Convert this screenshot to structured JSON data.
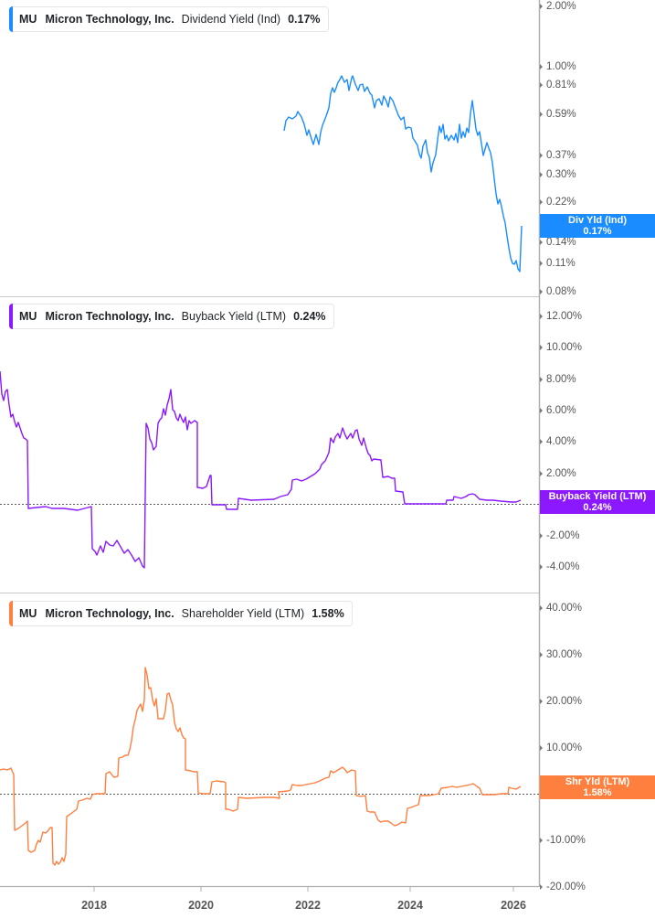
{
  "colors": {
    "dividend": "#1a8cff",
    "buyback": "#8b18ff",
    "shareholder": "#ff7f3f",
    "axis": "#b0b0b0",
    "zero_line": "#555555"
  },
  "panels": [
    {
      "legend": {
        "ticker": "MU",
        "company": "Micron Technology, Inc.",
        "metric": "Dividend Yield (Ind)",
        "value": "0.17%"
      },
      "tag": {
        "label": "Div Yld (Ind)",
        "value": "0.17%"
      },
      "yticks": [
        "2.00%",
        "1.00%",
        "0.81%",
        "0.59%",
        "0.37%",
        "0.30%",
        "0.22%",
        "0.14%",
        "0.11%",
        "0.08%"
      ]
    },
    {
      "legend": {
        "ticker": "MU",
        "company": "Micron Technology, Inc.",
        "metric": "Buyback Yield (LTM)",
        "value": "0.24%"
      },
      "tag": {
        "label": "Buyback Yield (LTM)",
        "value": "0.24%"
      },
      "yticks": [
        "12.00%",
        "10.00%",
        "8.00%",
        "6.00%",
        "4.00%",
        "2.00%",
        "0.00%",
        "-2.00%",
        "-4.00%"
      ]
    },
    {
      "legend": {
        "ticker": "MU",
        "company": "Micron Technology, Inc.",
        "metric": "Shareholder Yield (LTM)",
        "value": "1.58%"
      },
      "tag": {
        "label": "Shr Yld (LTM)",
        "value": "1.58%"
      },
      "yticks": [
        "40.00%",
        "30.00%",
        "20.00%",
        "10.00%",
        "0.00%",
        "-10.00%",
        "-20.00%"
      ]
    }
  ],
  "xaxis": {
    "ticks": [
      "2018",
      "2020",
      "2022",
      "2024",
      "2026"
    ]
  },
  "chart_data": [
    {
      "type": "line",
      "title": "MU Micron Technology, Inc. Dividend Yield (Ind)",
      "ylabel": "Dividend Yield (Ind)",
      "yscale": "log",
      "yticks": [
        "2.00%",
        "1.00%",
        "0.81%",
        "0.59%",
        "0.37%",
        "0.30%",
        "0.22%",
        "0.14%",
        "0.11%",
        "0.08%"
      ],
      "ylim": [
        0.08,
        2.0
      ],
      "xticks": [
        "2018",
        "2020",
        "2022",
        "2024",
        "2026"
      ],
      "latest": "0.17%",
      "series": [
        {
          "name": "Div Yld (Ind)",
          "x": [
            2021.6,
            2021.8,
            2022.0,
            2022.2,
            2022.5,
            2022.8,
            2023.0,
            2023.3,
            2023.6,
            2023.8,
            2024.0,
            2024.2,
            2024.4,
            2024.7,
            2025.0,
            2025.3,
            2025.5,
            2025.7,
            2025.9,
            2026.1,
            2026.2
          ],
          "values": [
            0.52,
            0.58,
            0.45,
            0.55,
            0.75,
            0.92,
            0.78,
            0.74,
            0.65,
            0.48,
            0.32,
            0.42,
            0.52,
            0.46,
            0.52,
            0.66,
            0.38,
            0.36,
            0.21,
            0.11,
            0.17
          ]
        }
      ]
    },
    {
      "type": "line",
      "title": "MU Micron Technology, Inc. Buyback Yield (LTM)",
      "ylabel": "Buyback Yield (LTM)",
      "yticks": [
        "12.00%",
        "10.00%",
        "8.00%",
        "6.00%",
        "4.00%",
        "2.00%",
        "0.00%",
        "-2.00%",
        "-4.00%"
      ],
      "ylim": [
        -4,
        12
      ],
      "xticks": [
        "2018",
        "2020",
        "2022",
        "2024",
        "2026"
      ],
      "latest": "0.24%",
      "series": [
        {
          "name": "Buyback Yield (LTM)",
          "x": [
            2016.2,
            2016.5,
            2016.7,
            2016.75,
            2017.5,
            2017.9,
            2017.95,
            2018.4,
            2018.95,
            2019.0,
            2019.3,
            2019.5,
            2019.9,
            2019.95,
            2020.2,
            2020.25,
            2020.5,
            2020.55,
            2021.4,
            2021.8,
            2022.2,
            2022.5,
            2022.8,
            2023.1,
            2023.3,
            2023.5,
            2023.7,
            2024.3,
            2024.5,
            2025.0,
            2025.3,
            2025.6,
            2026.1,
            2026.2
          ],
          "values": [
            8.5,
            7.0,
            4.1,
            -0.3,
            -0.4,
            -0.3,
            -3.0,
            -2.4,
            -4.0,
            5.2,
            7.4,
            5.0,
            5.0,
            1.9,
            1.9,
            0.0,
            -0.3,
            0.4,
            0.4,
            1.4,
            2.5,
            4.5,
            4.8,
            4.2,
            2.0,
            1.2,
            0.0,
            0.0,
            0.3,
            0.6,
            0.3,
            0.2,
            0.1,
            0.24
          ]
        }
      ]
    },
    {
      "type": "line",
      "title": "MU Micron Technology, Inc. Shareholder Yield (LTM)",
      "ylabel": "Shareholder Yield (LTM)",
      "yticks": [
        "40.00%",
        "30.00%",
        "20.00%",
        "10.00%",
        "0.00%",
        "-10.00%",
        "-20.00%"
      ],
      "ylim": [
        -20,
        40
      ],
      "xticks": [
        "2018",
        "2020",
        "2022",
        "2024",
        "2026"
      ],
      "latest": "1.58%",
      "series": [
        {
          "name": "Shr Yld (LTM)",
          "x": [
            2016.2,
            2016.7,
            2016.75,
            2017.0,
            2017.5,
            2017.55,
            2017.9,
            2018.3,
            2018.6,
            2019.0,
            2019.3,
            2019.5,
            2019.7,
            2020.0,
            2020.3,
            2020.5,
            2020.75,
            2021.5,
            2022.0,
            2022.5,
            2022.9,
            2023.0,
            2023.3,
            2023.6,
            2023.9,
            2024.3,
            2024.5,
            2025.0,
            2025.3,
            2025.5,
            2025.8,
            2026.0,
            2026.2
          ],
          "values": [
            5.5,
            5.0,
            -8.5,
            -6.5,
            -12.5,
            -14.5,
            -6.0,
            0.5,
            6.0,
            14.0,
            26.0,
            17.0,
            14.0,
            0.0,
            3.0,
            -2.8,
            -0.5,
            0.5,
            1.5,
            4.0,
            5.5,
            0.0,
            -4.0,
            -7.0,
            -2.5,
            0.0,
            2.5,
            2.8,
            2.0,
            0.5,
            0.5,
            1.5,
            1.58
          ]
        }
      ]
    }
  ],
  "plot_paths": {
    "dividend": "311,143 313,132 316,128 320,130 324,127 326,122 330,128 333,136 336,148 338,142 341,152 343,158 346,147 349,158 351,145 353,137 355,132 357,127 360,118 362,102 364,96 366,101 368,96 370,90 372,87 374,83 377,90 380,87 382,99 385,85 386,83 389,92 392,99 394,93 397,92 399,100 402,95 405,102 407,104 410,118 412,110 415,108 418,115 420,105 423,111 425,117 427,106 430,110 433,118 436,126 439,131 442,128 444,141 447,139 450,140 452,151 454,154 457,159 459,168 461,173 463,160 466,153 468,167 470,172 472,188 474,178 477,169 479,153 481,138 483,145 485,136 487,152 489,148 491,154 494,148 497,153 499,146 501,156 503,136 505,151 507,144 509,150 511,140 513,145 515,124 517,110 519,125 521,141 523,148 525,144 527,157 529,170 531,163 533,156 535,162 537,167 539,178 541,195 543,212 545,223 547,218 549,226 551,236 553,244 555,258 557,271 559,282 561,288 563,289 565,285 567,294 569,297 571,247",
    "buyback": "0,406 2,431 4,438 6,428 8,426 10,443 12,456 14,453 16,461 18,467 20,462 22,468 24,474 26,479 28,480 30,482 31,556 40,555 50,554 57,556 70,556 85,558 100,554 101,600 104,603 106,607 110,597 113,604 116,592 120,596 124,597 128,591 132,598 136,605 140,601 144,607 148,614 152,610 156,619 158,621 160,463 162,468 164,480 166,484 168,492 171,488 173,463 175,459 177,457 179,447 181,454 183,443 185,436 187,426 189,448 191,450 193,457 195,460 197,453 199,458 201,462 203,456 205,470 207,460 209,463 213,460 216,462 216,533 222,534 226,532 230,520 231,520 232,552 247,552 248,557 260,557 261,545 275,547 300,546 307,543 315,541 319,535 320,525 325,524 330,526 335,524 340,521 345,518 350,513 352,508 356,504 360,495 362,479 365,484 367,478 370,474 372,479 375,468 378,476 380,480 384,474 386,479 389,471 391,470 393,480 396,487 398,479 401,490 403,496 405,498 407,504 409,502 417,503 419,522 425,521 429,523 432,523 433,537 441,538 443,551 460,551 480,551 488,551 489,547 496,547 497,543 505,545 510,543 513,541 517,540 520,541 524,545 525,546 533,547 540,547 548,548 560,549 565,549 570,547",
    "shareholder": "0,842 4,841 8,842 12,840 15,847 16,908 20,906 24,903 28,900 30,898 31,930 34,932 38,930 40,923 42,919 44,921 47,910 50,911 53,908 55,905 57,905 58,944 60,946 62,942 64,945 66,943 68,938 70,942 72,934 73,893 76,891 80,888 84,885 86,876 90,875 95,873 99,874 101,869 105,868 112,868 115,868 116,846 120,844 123,848 125,850 129,849 130,829 134,828 137,826 140,826 142,820 144,810 146,795 148,787 150,777 152,773 154,770 156,778 158,765 159,730 161,738 163,753 165,752 167,765 169,772 171,764 173,786 176,786 179,786 181,777 183,759 185,758 187,765 189,771 191,790 193,797 195,800 197,796 199,803 201,807 203,808 203,842 209,843 212,844 216,844 217,867 222,868 230,868 232,855 237,854 245,855 247,856 247,885 250,885 255,887 260,885 261,872 270,873 290,872 300,872 306,873 305,866 315,865 318,864 320,858 325,859 330,859 335,858 340,857 345,856 350,854 356,851 360,850 362,843 365,845 370,842 375,839 378,842 380,845 385,842 389,843 390,870 395,871 400,870 402,887 405,888 410,888 414,897 417,899 420,898 425,898 428,900 432,903 435,902 440,899 444,900 446,884 450,883 455,881 458,880 460,870 470,870 480,868 483,862 490,861 495,860 500,861 505,860 510,859 515,858 518,857 522,860 525,862 528,869 535,869 540,869 550,868 556,868 557,861 560,862 565,863 570,860"
  }
}
